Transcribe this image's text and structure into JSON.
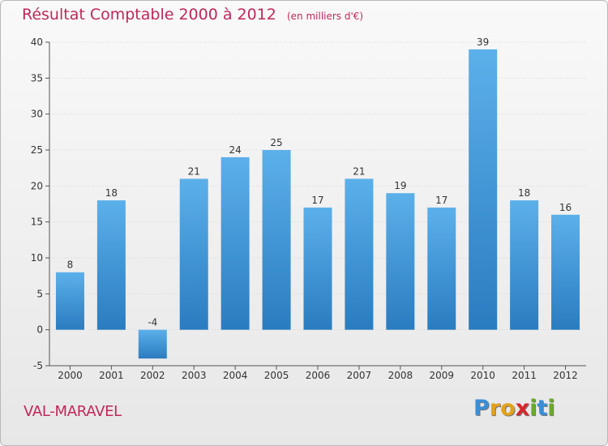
{
  "title": "Résultat Comptable 2000 à 2012",
  "unit": "(en milliers d'€)",
  "location": "VAL-MARAVEL",
  "logo": {
    "letters": [
      {
        "char": "P",
        "color": "#3a8fd6"
      },
      {
        "char": "r",
        "color": "#e2a21c"
      },
      {
        "char": "o",
        "color": "#e2a21c"
      },
      {
        "char": "x",
        "color": "#d8262d"
      },
      {
        "char": "i",
        "color": "#6aaa2a"
      },
      {
        "char": "t",
        "color": "#3a8fd6"
      },
      {
        "char": "i",
        "color": "#6aaa2a"
      }
    ]
  },
  "colors": {
    "bar_light": "#5cb0ea",
    "bar_dark": "#2a7cc0",
    "axis": "#555555",
    "grid": "#d6d6d6"
  },
  "chart_data": {
    "type": "bar",
    "title": "Résultat Comptable 2000 à 2012",
    "categories": [
      "2000",
      "2001",
      "2002",
      "2003",
      "2004",
      "2005",
      "2006",
      "2007",
      "2008",
      "2009",
      "2010",
      "2011",
      "2012"
    ],
    "values": [
      8,
      18,
      -4,
      21,
      24,
      25,
      17,
      21,
      19,
      17,
      39,
      18,
      16
    ],
    "data_labels": [
      "8",
      "18",
      "-4",
      "21",
      "24",
      "25",
      "17",
      "21",
      "19",
      "17",
      "39",
      "18",
      "16"
    ],
    "ylim": [
      -5,
      40
    ],
    "yticks": [
      -5,
      0,
      5,
      10,
      15,
      20,
      25,
      30,
      35,
      40
    ],
    "ytick_labels": [
      "-5",
      "0",
      "5",
      "10",
      "15",
      "20",
      "25",
      "30",
      "35",
      "40"
    ],
    "grid": "horizontal"
  }
}
